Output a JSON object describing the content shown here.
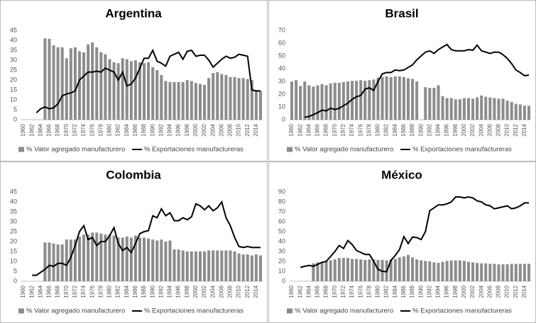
{
  "chart_data": [
    {
      "type": "combo",
      "title": "Argentina",
      "categories": [
        "1960",
        null,
        "1962",
        null,
        "1964",
        null,
        "1966",
        null,
        "1968",
        null,
        "1970",
        null,
        "1972",
        null,
        "1974",
        null,
        "1976",
        null,
        "1978",
        null,
        "1980",
        null,
        "1982",
        null,
        "1984",
        null,
        "1986",
        null,
        "1988",
        null,
        "1990",
        null,
        "1992",
        null,
        "1994",
        null,
        "1996",
        null,
        "1998",
        null,
        "2000",
        null,
        "2002",
        null,
        "2004",
        null,
        "2006",
        null,
        "2008",
        null,
        "2010",
        null,
        "2012",
        null,
        "2014",
        null
      ],
      "ylim": [
        0,
        45
      ],
      "yticks": [
        0,
        5,
        10,
        15,
        20,
        25,
        30,
        35,
        40,
        45
      ],
      "series": [
        {
          "name": "% Valor agregado manufacturero",
          "type": "bar",
          "color": "#8c8c8c",
          "values": [
            null,
            null,
            null,
            null,
            null,
            41,
            40.8,
            37.5,
            36.5,
            36.5,
            31,
            36,
            36.5,
            34.5,
            34,
            38,
            39,
            36.5,
            34,
            33,
            30.5,
            29,
            28.5,
            31,
            30.5,
            29.5,
            30,
            29,
            28.5,
            29,
            26.5,
            25,
            22.5,
            19.5,
            19,
            19,
            19,
            19,
            20,
            19.5,
            18.5,
            18,
            17.5,
            21,
            23.5,
            24,
            23,
            22.5,
            21.5,
            21.5,
            21,
            21,
            20.5,
            20,
            15,
            14.5
          ]
        },
        {
          "name": "% Exportaciones manufactureras",
          "type": "line",
          "color": "#000000",
          "values": [
            null,
            null,
            null,
            3.5,
            5.5,
            6.5,
            5.5,
            6,
            8,
            12,
            13,
            13.5,
            14.5,
            20,
            22,
            24,
            24,
            24.5,
            24,
            26,
            25,
            24,
            20,
            24,
            17,
            18,
            21,
            26,
            31,
            31,
            35,
            29.5,
            28.5,
            27,
            32,
            33,
            34,
            30.5,
            34.5,
            35,
            32,
            32.5,
            32.5,
            30,
            26.5,
            28.5,
            30.5,
            32,
            31,
            31.5,
            33,
            32.5,
            32,
            15,
            14.5,
            14.5
          ]
        }
      ]
    },
    {
      "type": "combo",
      "title": "Brasil",
      "categories": [
        "1960",
        null,
        "1962",
        null,
        "1964",
        null,
        "1966",
        null,
        "1968",
        null,
        "1970",
        null,
        "1972",
        null,
        "1974",
        null,
        "1976",
        null,
        "1978",
        null,
        "1980",
        null,
        "1982",
        null,
        "1984",
        null,
        "1986",
        null,
        "1988",
        null,
        "1990",
        null,
        "1992",
        null,
        "1994",
        null,
        "1996",
        null,
        "1998",
        null,
        "2000",
        null,
        "2002",
        null,
        "2004",
        null,
        "2006",
        null,
        "2008",
        null,
        "2010",
        null,
        "2012",
        null,
        "2014",
        null
      ],
      "ylim": [
        0,
        70
      ],
      "yticks": [
        0,
        10,
        20,
        30,
        40,
        50,
        60,
        70
      ],
      "series": [
        {
          "name": "% Valor agregado manufacturero",
          "type": "bar",
          "color": "#8c8c8c",
          "values": [
            30,
            31,
            26.5,
            30,
            27,
            26,
            27,
            28,
            27,
            28.5,
            29,
            29,
            29.5,
            30,
            30.5,
            30.5,
            31,
            30.5,
            31,
            31.5,
            33,
            33.5,
            34,
            33.5,
            34,
            34,
            33.5,
            32.5,
            32,
            30,
            null,
            25.5,
            25,
            25,
            27,
            18.5,
            17,
            17,
            16,
            16,
            17,
            17,
            16.5,
            17.5,
            19,
            18,
            17.5,
            17,
            16.5,
            16.5,
            15,
            14,
            12.5,
            12,
            11,
            11
          ]
        },
        {
          "name": "% Exportaciones manufactureras",
          "type": "line",
          "color": "#000000",
          "values": [
            null,
            null,
            null,
            2,
            2.5,
            4,
            5.5,
            7.5,
            7,
            9,
            8,
            9,
            11,
            13,
            16,
            18,
            19,
            24,
            25,
            23,
            30,
            36,
            37,
            37,
            39,
            38.5,
            39,
            41,
            43,
            47,
            50,
            53,
            54,
            52,
            55,
            57,
            59,
            55,
            54,
            54,
            54,
            55,
            54.5,
            58.5,
            54,
            53,
            52,
            53,
            53,
            51,
            48,
            44,
            39,
            37,
            34.5,
            35
          ]
        }
      ]
    },
    {
      "type": "combo",
      "title": "Colombia",
      "categories": [
        "1960",
        null,
        "1962",
        null,
        "1964",
        null,
        "1966",
        null,
        "1968",
        null,
        "1970",
        null,
        "1972",
        null,
        "1974",
        null,
        "1976",
        null,
        "1978",
        null,
        "1980",
        null,
        "1982",
        null,
        "1984",
        null,
        "1986",
        null,
        "1988",
        null,
        "1990",
        null,
        "1992",
        null,
        "1994",
        null,
        "1996",
        null,
        "1998",
        null,
        "2000",
        null,
        "2002",
        null,
        "2004",
        null,
        "2006",
        null,
        "2008",
        null,
        "2010",
        null,
        "2012",
        null,
        "2014",
        null
      ],
      "ylim": [
        0,
        45
      ],
      "yticks": [
        0,
        5,
        10,
        15,
        20,
        25,
        30,
        35,
        40,
        45
      ],
      "series": [
        {
          "name": "% Valor agregado manufacturero",
          "type": "bar",
          "color": "#8c8c8c",
          "values": [
            null,
            null,
            null,
            null,
            null,
            19.5,
            19.5,
            19,
            18.5,
            18.5,
            21,
            21,
            21,
            22.5,
            23.5,
            23.5,
            24.5,
            24.5,
            24,
            23.5,
            23.5,
            23,
            22,
            22,
            22.5,
            22,
            23,
            22,
            22,
            21.5,
            21,
            20.5,
            21,
            20,
            20.5,
            16,
            16,
            15.5,
            15,
            15,
            15,
            15,
            15,
            15.5,
            15.5,
            15.5,
            15.5,
            15.5,
            15.5,
            15,
            14,
            13.5,
            13.5,
            13,
            13.5,
            13
          ]
        },
        {
          "name": "% Exportaciones manufactureras",
          "type": "line",
          "color": "#000000",
          "values": [
            null,
            null,
            3,
            3,
            4.5,
            6,
            8,
            7.5,
            9,
            9,
            8,
            12,
            18,
            25,
            28,
            21,
            22,
            18,
            20,
            20,
            23,
            27,
            19,
            15.5,
            17,
            14.5,
            19,
            24,
            25,
            25.5,
            33,
            32,
            36.5,
            33,
            34.5,
            30.5,
            30.5,
            32,
            31,
            32.5,
            39,
            38,
            36,
            38,
            35.5,
            37,
            40,
            32,
            28,
            22,
            17.5,
            17,
            17.5,
            17,
            17,
            17
          ]
        }
      ]
    },
    {
      "type": "combo",
      "title": "México",
      "categories": [
        "1960",
        null,
        "1962",
        null,
        "1964",
        null,
        "1966",
        null,
        "1968",
        null,
        "1970",
        null,
        "1972",
        null,
        "1974",
        null,
        "1976",
        null,
        "1978",
        null,
        "1980",
        null,
        "1982",
        null,
        "1984",
        null,
        "1986",
        null,
        "1988",
        null,
        "1990",
        null,
        "1992",
        null,
        "1994",
        null,
        "1996",
        null,
        "1998",
        null,
        "2000",
        null,
        "2002",
        null,
        "2004",
        null,
        "2006",
        null,
        "2008",
        null,
        "2010",
        null,
        "2012",
        null,
        "2014",
        null
      ],
      "ylim": [
        0,
        90
      ],
      "yticks": [
        0,
        10,
        20,
        30,
        40,
        50,
        60,
        70,
        80,
        90
      ],
      "series": [
        {
          "name": "% Valor agregado manufacturero",
          "type": "bar",
          "color": "#8c8c8c",
          "values": [
            null,
            null,
            null,
            null,
            null,
            18,
            19,
            19.5,
            20,
            21,
            22,
            23.5,
            23.5,
            23.5,
            22.5,
            22.5,
            22,
            21.5,
            22,
            22,
            21.5,
            21.5,
            21,
            22,
            22.5,
            24,
            25,
            26.5,
            24,
            22,
            21,
            20.5,
            20,
            19,
            18.5,
            19.5,
            20.5,
            21,
            21,
            21,
            20.5,
            19.5,
            19,
            18.5,
            18,
            18,
            17.5,
            17.5,
            17,
            17,
            17,
            17.5,
            17.5,
            17.5,
            17.5,
            17.5
          ]
        },
        {
          "name": "% Exportaciones manufactureras",
          "type": "line",
          "color": "#000000",
          "values": [
            null,
            null,
            14,
            15,
            16,
            15,
            17,
            19,
            20,
            25,
            30,
            36,
            33,
            41,
            37,
            31,
            29,
            27,
            27,
            20,
            12,
            10,
            9.5,
            21,
            26,
            32,
            45,
            38,
            44.5,
            44,
            42,
            50,
            71,
            74,
            77,
            77,
            78,
            80,
            85,
            85,
            84,
            85,
            84,
            81,
            80,
            77,
            76,
            73,
            74,
            75,
            76,
            73,
            74,
            76,
            79,
            79
          ]
        }
      ]
    }
  ]
}
